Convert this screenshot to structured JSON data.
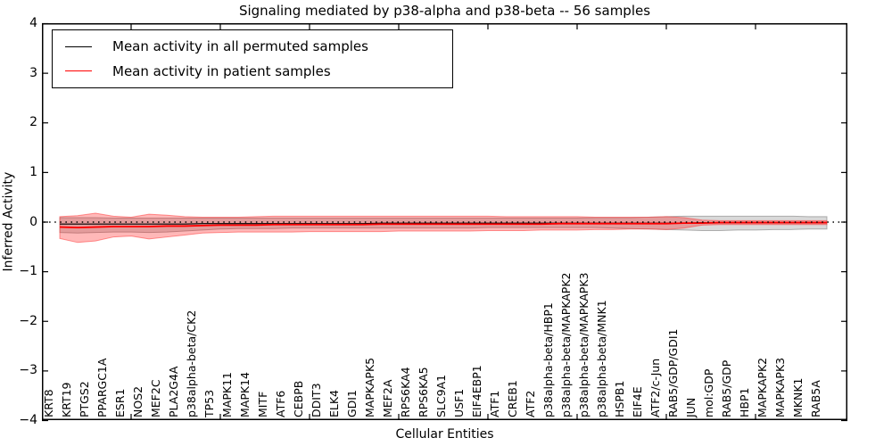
{
  "figure": {
    "title": "Signaling mediated by p38-alpha and p38-beta -- 56 samples",
    "xlabel": "Cellular Entities",
    "ylabel": "Inferred Activity"
  },
  "legend": {
    "entries": [
      {
        "label": "Mean activity in all permuted samples",
        "color": "#000000"
      },
      {
        "label": "Mean activity in patient samples",
        "color": "#ff0000"
      }
    ]
  },
  "chart_data": {
    "type": "line",
    "title": "Signaling mediated by p38-alpha and p38-beta -- 56 samples",
    "xlabel": "Cellular Entities",
    "ylabel": "Inferred Activity",
    "ylim": [
      -4,
      4
    ],
    "xlim": [
      0,
      45
    ],
    "grid": false,
    "legend_position": "upper left",
    "zero_reference_line": 0,
    "y_ticks": [
      "4",
      "3",
      "2",
      "1",
      "0",
      "−1",
      "−2",
      "−3",
      "−4"
    ],
    "categories": [
      "KRT8",
      "KRT19",
      "PTGS2",
      "PPARGC1A",
      "ESR1",
      "NOS2",
      "MEF2C",
      "PLA2G4A",
      "p38alpha-beta/CK2",
      "TP53",
      "MAPK11",
      "MAPK14",
      "MITF",
      "ATF6",
      "CEBPB",
      "DDIT3",
      "ELK4",
      "GDI1",
      "MAPKAPK5",
      "MEF2A",
      "RPS6KA4",
      "RPS6KA5",
      "SLC9A1",
      "USF1",
      "EIF4EBP1",
      "ATF1",
      "CREB1",
      "ATF2",
      "p38alpha-beta/HBP1",
      "p38alpha-beta/MAPKAPK2",
      "p38alpha-beta/MAPKAPK3",
      "p38alpha-beta/MNK1",
      "HSPB1",
      "EIF4E",
      "ATF2/c-Jun",
      "RAB5/GDP/GDI1",
      "JUN",
      "mol:GDP",
      "RAB5/GDP",
      "HBP1",
      "MAPKAPK2",
      "MAPKAPK3",
      "MKNK1",
      "RAB5A"
    ],
    "series": [
      {
        "name": "Mean activity in all permuted samples",
        "color": "#000000",
        "line_width": 1.1,
        "band_fill": "rgba(128,128,128,0.30)",
        "band_edge": "rgba(120,120,120,0.55)",
        "values": [
          -0.04,
          -0.04,
          -0.04,
          -0.04,
          -0.04,
          -0.04,
          -0.04,
          -0.04,
          -0.03,
          -0.03,
          -0.03,
          -0.03,
          -0.03,
          -0.03,
          -0.03,
          -0.03,
          -0.03,
          -0.03,
          -0.02,
          -0.02,
          -0.02,
          -0.02,
          -0.02,
          -0.02,
          -0.02,
          -0.02,
          -0.02,
          -0.02,
          -0.02,
          -0.02,
          -0.02,
          -0.02,
          -0.02,
          -0.02,
          -0.02,
          -0.02,
          -0.01,
          -0.01,
          -0.01,
          -0.01,
          -0.01,
          -0.01,
          -0.01,
          -0.01
        ],
        "band_upper": [
          0.09,
          0.09,
          0.09,
          0.08,
          0.08,
          0.08,
          0.08,
          0.08,
          0.08,
          0.08,
          0.08,
          0.08,
          0.08,
          0.08,
          0.08,
          0.08,
          0.08,
          0.08,
          0.08,
          0.08,
          0.08,
          0.08,
          0.08,
          0.08,
          0.08,
          0.08,
          0.08,
          0.08,
          0.08,
          0.08,
          0.09,
          0.09,
          0.09,
          0.1,
          0.11,
          0.12,
          0.12,
          0.12,
          0.12,
          0.12,
          0.12,
          0.12,
          0.11,
          0.11
        ],
        "band_lower": [
          -0.21,
          -0.22,
          -0.21,
          -0.2,
          -0.2,
          -0.21,
          -0.2,
          -0.18,
          -0.16,
          -0.14,
          -0.13,
          -0.13,
          -0.13,
          -0.12,
          -0.12,
          -0.12,
          -0.12,
          -0.12,
          -0.12,
          -0.12,
          -0.12,
          -0.12,
          -0.12,
          -0.12,
          -0.11,
          -0.11,
          -0.11,
          -0.11,
          -0.11,
          -0.11,
          -0.11,
          -0.12,
          -0.13,
          -0.14,
          -0.15,
          -0.16,
          -0.17,
          -0.17,
          -0.16,
          -0.16,
          -0.15,
          -0.15,
          -0.14,
          -0.14
        ]
      },
      {
        "name": "Mean activity in patient samples",
        "color": "#ff0000",
        "line_width": 1.8,
        "band_fill": "rgba(255,0,0,0.28)",
        "band_edge": "rgba(255,60,60,0.55)",
        "values": [
          -0.1,
          -0.11,
          -0.1,
          -0.09,
          -0.09,
          -0.09,
          -0.08,
          -0.08,
          -0.07,
          -0.06,
          -0.06,
          -0.06,
          -0.05,
          -0.05,
          -0.05,
          -0.05,
          -0.05,
          -0.05,
          -0.04,
          -0.04,
          -0.04,
          -0.04,
          -0.04,
          -0.04,
          -0.04,
          -0.04,
          -0.04,
          -0.04,
          -0.03,
          -0.03,
          -0.03,
          -0.03,
          -0.03,
          -0.03,
          -0.03,
          -0.02,
          -0.02,
          -0.01,
          -0.01,
          -0.01,
          -0.01,
          -0.01,
          -0.01,
          -0.01
        ],
        "band_upper": [
          0.11,
          0.13,
          0.18,
          0.12,
          0.1,
          0.16,
          0.14,
          0.11,
          0.1,
          0.1,
          0.1,
          0.11,
          0.12,
          0.12,
          0.12,
          0.12,
          0.12,
          0.12,
          0.12,
          0.12,
          0.12,
          0.12,
          0.12,
          0.12,
          0.12,
          0.11,
          0.11,
          0.11,
          0.11,
          0.11,
          0.1,
          0.1,
          0.1,
          0.1,
          0.11,
          0.09,
          0.04,
          0.03,
          0.03,
          0.03,
          0.03,
          0.03,
          0.03,
          0.03
        ],
        "band_lower": [
          -0.33,
          -0.41,
          -0.38,
          -0.3,
          -0.28,
          -0.34,
          -0.3,
          -0.26,
          -0.22,
          -0.21,
          -0.2,
          -0.2,
          -0.2,
          -0.2,
          -0.19,
          -0.19,
          -0.19,
          -0.19,
          -0.19,
          -0.18,
          -0.18,
          -0.18,
          -0.18,
          -0.18,
          -0.17,
          -0.17,
          -0.17,
          -0.16,
          -0.16,
          -0.16,
          -0.15,
          -0.15,
          -0.14,
          -0.14,
          -0.15,
          -0.12,
          -0.06,
          -0.05,
          -0.05,
          -0.05,
          -0.05,
          -0.05,
          -0.05,
          -0.05
        ]
      }
    ]
  }
}
